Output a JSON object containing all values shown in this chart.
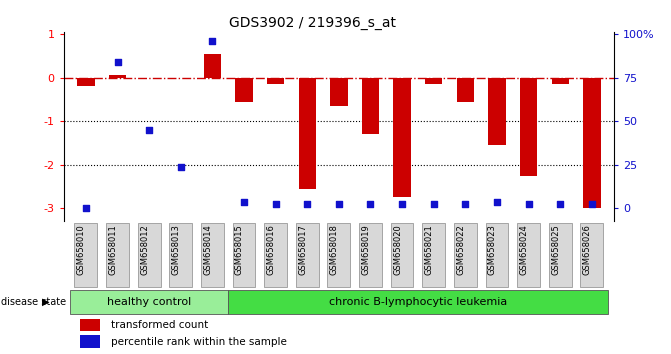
{
  "title": "GDS3902 / 219396_s_at",
  "samples": [
    "GSM658010",
    "GSM658011",
    "GSM658012",
    "GSM658013",
    "GSM658014",
    "GSM658015",
    "GSM658016",
    "GSM658017",
    "GSM658018",
    "GSM658019",
    "GSM658020",
    "GSM658021",
    "GSM658022",
    "GSM658023",
    "GSM658024",
    "GSM658025",
    "GSM658026"
  ],
  "red_values": [
    -0.2,
    0.05,
    -0.02,
    -0.02,
    0.55,
    -0.55,
    -0.15,
    -2.55,
    -0.65,
    -1.3,
    -2.75,
    -0.15,
    -0.55,
    -1.55,
    -2.25,
    -0.15,
    -3.0
  ],
  "blue_values": [
    -3.0,
    0.35,
    -1.2,
    -2.05,
    0.85,
    -2.85,
    -2.9,
    -2.9,
    -2.9,
    -2.9,
    -2.9,
    -2.9,
    -2.9,
    -2.85,
    -2.9,
    -2.9,
    -2.9
  ],
  "ylim": [
    -3.3,
    1.05
  ],
  "yticks": [
    1,
    0,
    -1,
    -2,
    -3
  ],
  "hline_y": 0.0,
  "dotted_lines": [
    -1.0,
    -2.0
  ],
  "group1_label": "healthy control",
  "group2_label": "chronic B-lymphocytic leukemia",
  "group1_count": 5,
  "group2_count": 12,
  "legend_red": "transformed count",
  "legend_blue": "percentile rank within the sample",
  "disease_state_label": "disease state",
  "bar_color": "#cc0000",
  "blue_color": "#1111cc",
  "group1_bg": "#99ee99",
  "group2_bg": "#44dd44",
  "right_axis_color": "#1111cc"
}
